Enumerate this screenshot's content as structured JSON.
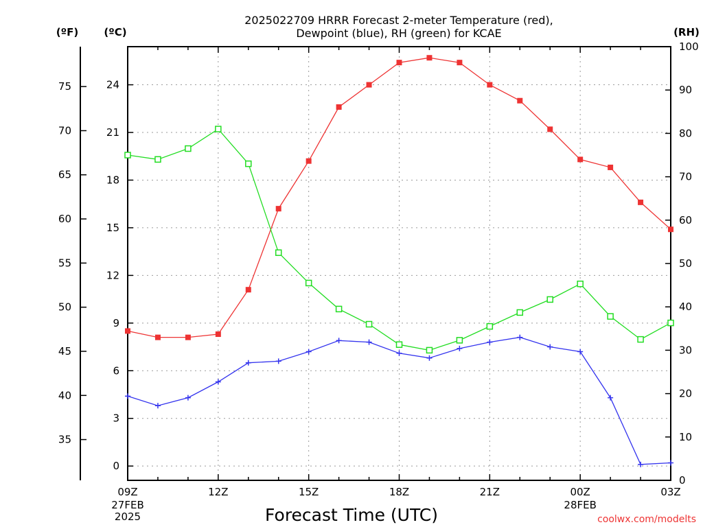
{
  "chart_data": {
    "type": "line",
    "title": [
      "2025022709 HRRR Forecast 2-meter Temperature (red),",
      "Dewpoint (blue), RH (green) for KCAE"
    ],
    "xlabel": "Forecast Time (UTC)",
    "credit": "coolwx.com/modelts",
    "units": {
      "fahrenheit": "(ºF)",
      "celsius": "(ºC)",
      "rh": "(RH)"
    },
    "x": [
      "09Z",
      "10Z",
      "11Z",
      "12Z",
      "13Z",
      "14Z",
      "15Z",
      "16Z",
      "17Z",
      "18Z",
      "19Z",
      "20Z",
      "21Z",
      "22Z",
      "23Z",
      "00Z",
      "01Z",
      "02Z",
      "03Z"
    ],
    "x_ticks": [
      {
        "index": 0,
        "label": "09Z",
        "sublabels": [
          "27FEB",
          "2025"
        ]
      },
      {
        "index": 3,
        "label": "12Z",
        "sublabels": []
      },
      {
        "index": 6,
        "label": "15Z",
        "sublabels": []
      },
      {
        "index": 9,
        "label": "18Z",
        "sublabels": []
      },
      {
        "index": 12,
        "label": "21Z",
        "sublabels": []
      },
      {
        "index": 15,
        "label": "00Z",
        "sublabels": [
          "28FEB"
        ]
      },
      {
        "index": 18,
        "label": "03Z",
        "sublabels": []
      }
    ],
    "y_celsius": {
      "ticks": [
        0,
        3,
        6,
        9,
        12,
        15,
        18,
        21,
        24
      ],
      "range": [
        -0.9,
        26.4
      ]
    },
    "y_fahrenheit": {
      "ticks": [
        35,
        40,
        45,
        50,
        55,
        60,
        65,
        70,
        75
      ]
    },
    "y_rh": {
      "ticks": [
        0,
        10,
        20,
        30,
        40,
        50,
        60,
        70,
        80,
        90,
        100
      ],
      "range": [
        0,
        100
      ]
    },
    "grid": true,
    "series": [
      {
        "name": "Temperature",
        "axis": "celsius",
        "color": "#ee3333",
        "marker": "filled-square",
        "values": [
          8.5,
          8.1,
          8.1,
          8.3,
          11.1,
          16.2,
          19.2,
          22.6,
          24.0,
          25.4,
          25.7,
          25.4,
          24.0,
          23.0,
          21.2,
          19.3,
          18.8,
          16.6,
          14.9
        ]
      },
      {
        "name": "Dewpoint",
        "axis": "celsius",
        "color": "#3333ee",
        "marker": "plus",
        "values": [
          4.4,
          3.8,
          4.3,
          5.3,
          6.5,
          6.6,
          7.2,
          7.9,
          7.8,
          7.1,
          6.8,
          7.4,
          7.8,
          8.1,
          7.5,
          7.2,
          4.3,
          0.1,
          0.2
        ]
      },
      {
        "name": "RH",
        "axis": "rh",
        "color": "#22dd22",
        "marker": "open-square",
        "values": [
          75.0,
          74.0,
          76.5,
          81.0,
          73.0,
          52.5,
          45.5,
          39.5,
          36.0,
          31.3,
          30.0,
          32.3,
          35.5,
          38.7,
          41.7,
          45.3,
          37.8,
          32.5,
          36.3
        ]
      }
    ]
  }
}
